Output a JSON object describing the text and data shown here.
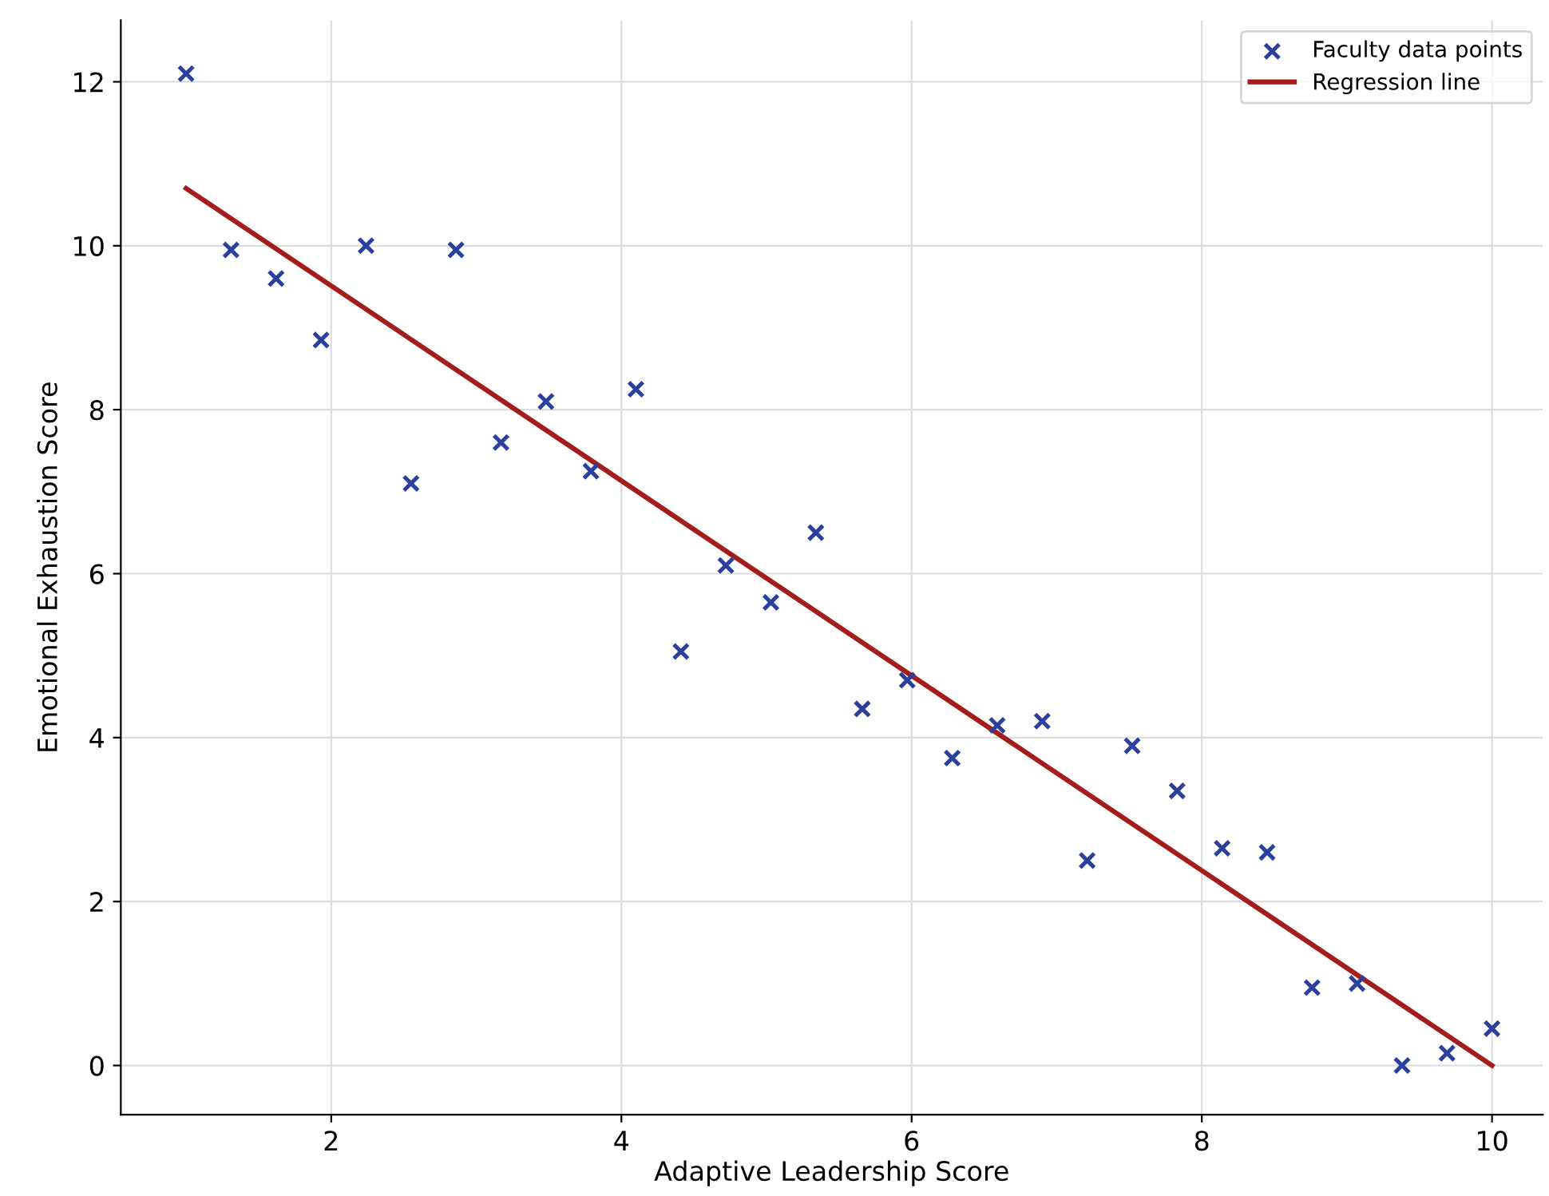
{
  "chart_data": {
    "type": "scatter",
    "xlabel": "Adaptive Leadership Score",
    "ylabel": "Emotional Exhaustion Score",
    "x": [
      1,
      1.31,
      1.62,
      1.93,
      2.24,
      2.55,
      2.86,
      3.17,
      3.48,
      3.79,
      4.1,
      4.41,
      4.72,
      5.03,
      5.34,
      5.66,
      5.97,
      6.28,
      6.59,
      6.9,
      7.21,
      7.52,
      7.83,
      8.14,
      8.45,
      8.76,
      9.07,
      9.38,
      9.69,
      10
    ],
    "series": [
      {
        "name": "Faculty data points",
        "color": "#2b3f9c",
        "marker": "cross",
        "values": [
          12.1,
          9.95,
          9.6,
          8.85,
          10.0,
          7.1,
          9.95,
          7.6,
          8.1,
          7.25,
          8.25,
          5.05,
          6.1,
          5.65,
          6.5,
          4.35,
          4.7,
          3.75,
          4.15,
          4.2,
          2.5,
          3.9,
          3.35,
          2.65,
          2.6,
          0.95,
          1.0,
          0.0,
          0.15,
          0.45
        ]
      },
      {
        "name": "Regression line",
        "type": "line",
        "color": "#a51c1c",
        "x": [
          1,
          10
        ],
        "values": [
          10.7,
          0.0
        ]
      }
    ],
    "xlim": [
      0.55,
      10.35
    ],
    "ylim": [
      -0.6,
      12.75
    ],
    "xticks": [
      2,
      4,
      6,
      8,
      10
    ],
    "yticks": [
      0,
      2,
      4,
      6,
      8,
      10,
      12
    ],
    "grid": true,
    "legend": "top right"
  }
}
